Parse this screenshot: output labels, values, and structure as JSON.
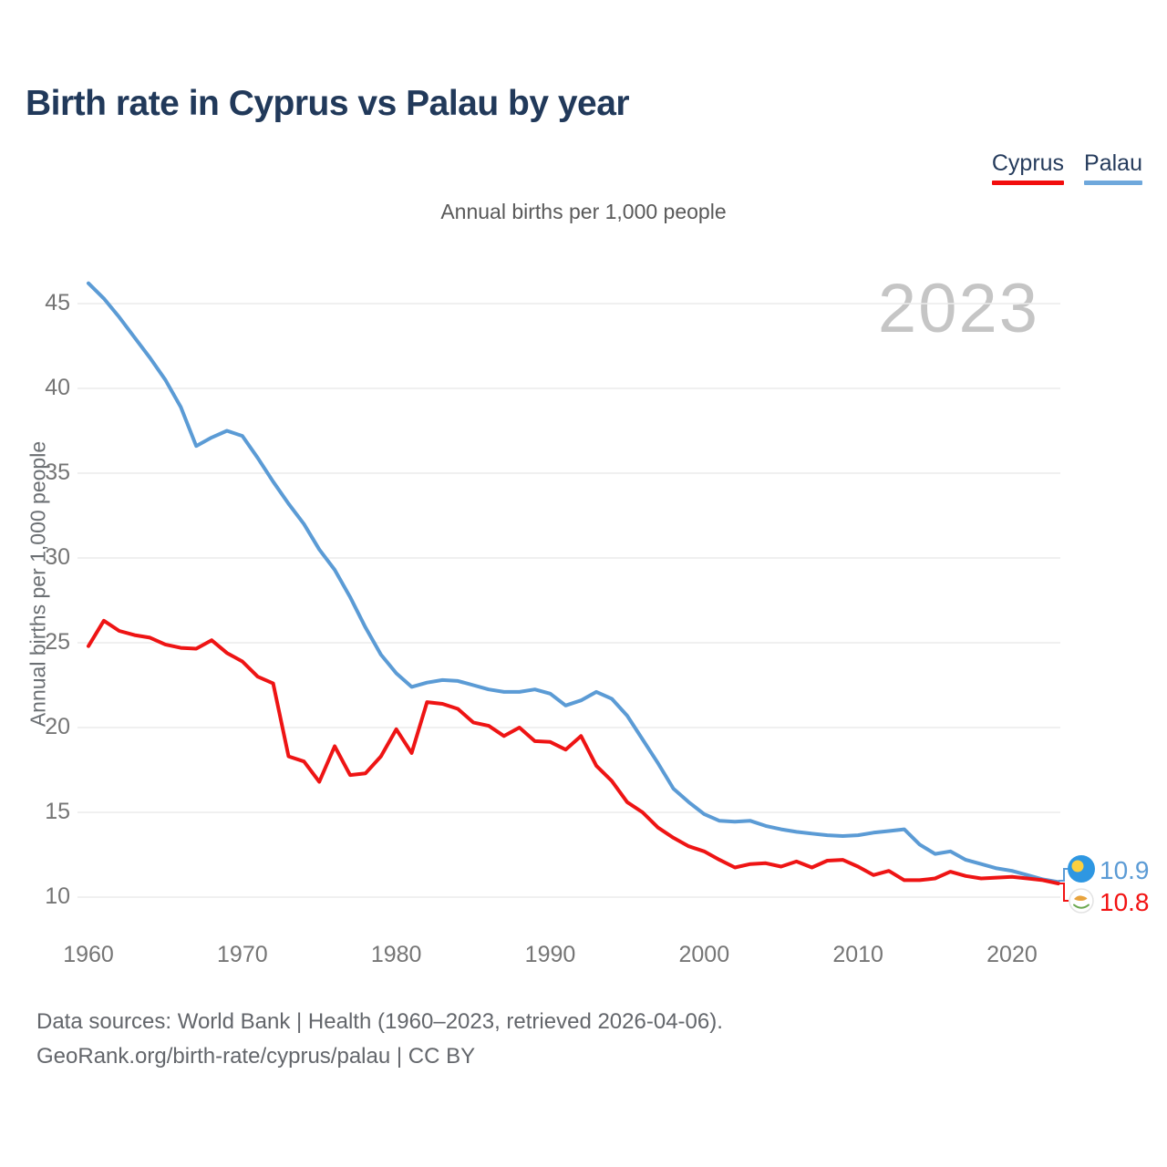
{
  "header": {
    "title": "Birth rate in Cyprus vs Palau by year",
    "subtitle": "Annual births per 1,000 people"
  },
  "legend": {
    "items": [
      {
        "label": "Cyprus",
        "color": "#f20d0d"
      },
      {
        "label": "Palau",
        "color": "#6fa8dc"
      }
    ]
  },
  "watermark_year": "2023",
  "chart_data": {
    "type": "line",
    "title": "Birth rate in Cyprus vs Palau by year",
    "x_start": 1960,
    "x_end": 2023,
    "x_axis": {
      "ticks": [
        1960,
        1970,
        1980,
        1990,
        2000,
        2010,
        2020
      ]
    },
    "y_axis": {
      "label": "Annual births per 1,000 people",
      "ticks": [
        45,
        40,
        35,
        30,
        25,
        20,
        15,
        10
      ],
      "range": [
        10,
        46.5
      ]
    },
    "grid": "horizontal-only",
    "legend_position": "top-right",
    "series": [
      {
        "id": "palau",
        "name": "Palau",
        "color": "#5b9bd5",
        "values": [
          46.2,
          45.3,
          44.2,
          43.0,
          41.8,
          40.5,
          38.9,
          36.6,
          37.1,
          37.5,
          37.2,
          35.9,
          34.5,
          33.2,
          32.0,
          30.5,
          29.3,
          27.7,
          25.9,
          24.3,
          23.2,
          22.4,
          22.65,
          22.8,
          22.75,
          22.5,
          22.25,
          22.1,
          22.1,
          22.25,
          22.0,
          21.3,
          21.6,
          22.1,
          21.7,
          20.7,
          19.3,
          17.9,
          16.4,
          15.6,
          14.9,
          14.5,
          14.45,
          14.5,
          14.2,
          14.0,
          13.85,
          13.75,
          13.65,
          13.6,
          13.65,
          13.8,
          13.9,
          14.0,
          13.1,
          12.55,
          12.7,
          12.2,
          11.95,
          11.7,
          11.55,
          11.3,
          11.05,
          10.9
        ]
      },
      {
        "id": "cyprus",
        "name": "Cyprus",
        "color": "#ee1414",
        "values": [
          24.8,
          26.3,
          25.7,
          25.45,
          25.3,
          24.9,
          24.7,
          24.65,
          25.15,
          24.4,
          23.9,
          23.0,
          22.6,
          18.3,
          18.0,
          16.8,
          18.9,
          17.2,
          17.3,
          18.3,
          19.9,
          18.5,
          21.5,
          21.4,
          21.1,
          20.3,
          20.1,
          19.5,
          20.0,
          19.2,
          19.15,
          18.7,
          19.5,
          17.75,
          16.85,
          15.6,
          15.0,
          14.1,
          13.5,
          13.0,
          12.7,
          12.2,
          11.75,
          11.95,
          12.0,
          11.8,
          12.1,
          11.75,
          12.15,
          12.2,
          11.8,
          11.3,
          11.55,
          11.0,
          11.0,
          11.1,
          11.5,
          11.25,
          11.1,
          11.15,
          11.2,
          11.1,
          11.0,
          10.8
        ]
      }
    ],
    "end_labels": [
      {
        "id": "palau",
        "value": "10.9",
        "color": "#5b9bd5"
      },
      {
        "id": "cyprus",
        "value": "10.8",
        "color": "#f21313"
      }
    ]
  },
  "footer": {
    "line1": "Data sources: World Bank | Health (1960–2023, retrieved 2026-04-06).",
    "line2": "GeoRank.org/birth-rate/cyprus/palau | CC BY"
  }
}
